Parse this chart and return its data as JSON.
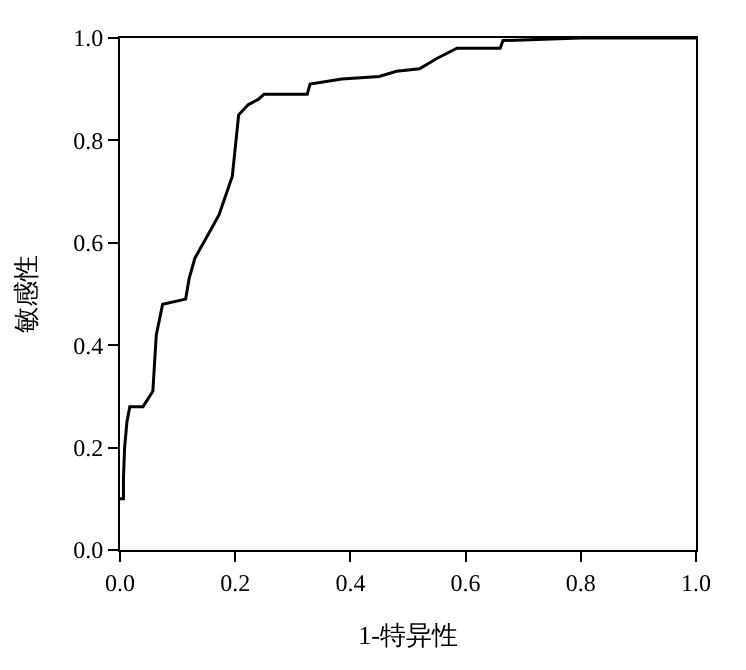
{
  "chart_data": {
    "type": "line",
    "xlabel": "1-特异性",
    "ylabel": "敏感性",
    "x": [
      0,
      0.006,
      0.006,
      0.008,
      0.012,
      0.017,
      0.04,
      0.057,
      0.063,
      0.074,
      0.114,
      0.12,
      0.13,
      0.155,
      0.172,
      0.195,
      0.206,
      0.223,
      0.24,
      0.25,
      0.325,
      0.33,
      0.385,
      0.45,
      0.48,
      0.52,
      0.55,
      0.585,
      0.66,
      0.665,
      0.8,
      1.0
    ],
    "series": [
      {
        "color": "#000000",
        "values": [
          0.1,
          0.1,
          0.14,
          0.2,
          0.25,
          0.28,
          0.28,
          0.31,
          0.42,
          0.48,
          0.49,
          0.53,
          0.57,
          0.62,
          0.655,
          0.73,
          0.85,
          0.87,
          0.88,
          0.89,
          0.89,
          0.91,
          0.92,
          0.925,
          0.935,
          0.94,
          0.96,
          0.98,
          0.98,
          0.995,
          1.0,
          1.0
        ]
      }
    ],
    "xlim": [
      0,
      1
    ],
    "ylim": [
      0,
      1
    ],
    "xticks": [
      {
        "value": 0,
        "label": "0.0"
      },
      {
        "value": 0.2,
        "label": "0.2"
      },
      {
        "value": 0.4,
        "label": "0.4"
      },
      {
        "value": 0.6,
        "label": "0.6"
      },
      {
        "value": 0.8,
        "label": "0.8"
      },
      {
        "value": 1,
        "label": "1.0"
      }
    ],
    "yticks": [
      {
        "value": 0,
        "label": "0.0"
      },
      {
        "value": 0.2,
        "label": "0.2"
      },
      {
        "value": 0.4,
        "label": "0.4"
      },
      {
        "value": 0.6,
        "label": "0.6"
      },
      {
        "value": 0.8,
        "label": "0.8"
      },
      {
        "value": 1,
        "label": "1.0"
      }
    ],
    "marker": "none",
    "line_style": "solid"
  }
}
